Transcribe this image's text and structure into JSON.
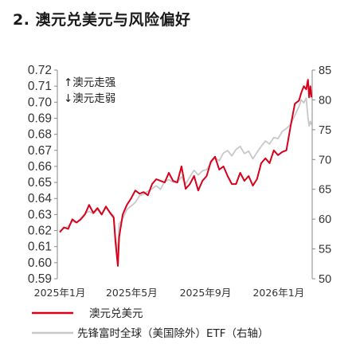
{
  "title": "2. 澳元兑美元与风险偏好",
  "chart_data": {
    "type": "line",
    "annotations": [
      "↑澳元走强",
      "↓澳元走弱"
    ],
    "x_ticks": [
      "2025年1月",
      "2025年5月",
      "2025年9月",
      "2026年1月"
    ],
    "x_tick_dates": [
      "2025-01-01",
      "2025-05-01",
      "2025-09-01",
      "2026-01-01"
    ],
    "x_range": [
      "2024-12-28",
      "2026-02-26"
    ],
    "y_left": {
      "ticks": [
        "0.72",
        "0.71",
        "0.70",
        "0.69",
        "0.68",
        "0.67",
        "0.66",
        "0.65",
        "0.64",
        "0.63",
        "0.62",
        "0.61",
        "0.60",
        "0.59"
      ],
      "range": [
        0.59,
        0.72
      ]
    },
    "y_right": {
      "ticks": [
        "85",
        "80",
        "75",
        "70",
        "65",
        "60",
        "55",
        "50"
      ],
      "range": [
        50,
        85
      ]
    },
    "grid": false,
    "legend_position": "bottom",
    "series": [
      {
        "name": "澳元兑美元",
        "axis": "left",
        "color": "#d9001b",
        "points": [
          [
            "2025-01-01",
            0.619
          ],
          [
            "2025-01-08",
            0.622
          ],
          [
            "2025-01-15",
            0.621
          ],
          [
            "2025-01-22",
            0.627
          ],
          [
            "2025-01-29",
            0.625
          ],
          [
            "2025-02-05",
            0.627
          ],
          [
            "2025-02-12",
            0.63
          ],
          [
            "2025-02-19",
            0.636
          ],
          [
            "2025-02-26",
            0.631
          ],
          [
            "2025-03-05",
            0.634
          ],
          [
            "2025-03-12",
            0.63
          ],
          [
            "2025-03-19",
            0.635
          ],
          [
            "2025-03-26",
            0.631
          ],
          [
            "2025-04-01",
            0.628
          ],
          [
            "2025-04-04",
            0.613
          ],
          [
            "2025-04-08",
            0.598
          ],
          [
            "2025-04-10",
            0.616
          ],
          [
            "2025-04-16",
            0.63
          ],
          [
            "2025-04-23",
            0.636
          ],
          [
            "2025-04-30",
            0.64
          ],
          [
            "2025-05-07",
            0.645
          ],
          [
            "2025-05-14",
            0.643
          ],
          [
            "2025-05-21",
            0.644
          ],
          [
            "2025-05-28",
            0.642
          ],
          [
            "2025-06-04",
            0.649
          ],
          [
            "2025-06-11",
            0.652
          ],
          [
            "2025-06-18",
            0.651
          ],
          [
            "2025-06-25",
            0.65
          ],
          [
            "2025-07-02",
            0.656
          ],
          [
            "2025-07-09",
            0.651
          ],
          [
            "2025-07-16",
            0.65
          ],
          [
            "2025-07-23",
            0.66
          ],
          [
            "2025-07-30",
            0.646
          ],
          [
            "2025-08-06",
            0.649
          ],
          [
            "2025-08-13",
            0.654
          ],
          [
            "2025-08-20",
            0.645
          ],
          [
            "2025-08-27",
            0.651
          ],
          [
            "2025-09-03",
            0.654
          ],
          [
            "2025-09-10",
            0.663
          ],
          [
            "2025-09-17",
            0.666
          ],
          [
            "2025-09-24",
            0.658
          ],
          [
            "2025-10-01",
            0.66
          ],
          [
            "2025-10-08",
            0.654
          ],
          [
            "2025-10-15",
            0.649
          ],
          [
            "2025-10-22",
            0.649
          ],
          [
            "2025-10-29",
            0.656
          ],
          [
            "2025-11-05",
            0.651
          ],
          [
            "2025-11-12",
            0.654
          ],
          [
            "2025-11-19",
            0.648
          ],
          [
            "2025-11-26",
            0.652
          ],
          [
            "2025-12-03",
            0.662
          ],
          [
            "2025-12-10",
            0.665
          ],
          [
            "2025-12-17",
            0.662
          ],
          [
            "2025-12-24",
            0.67
          ],
          [
            "2025-12-31",
            0.667
          ],
          [
            "2026-01-07",
            0.669
          ],
          [
            "2026-01-14",
            0.67
          ],
          [
            "2026-01-21",
            0.685
          ],
          [
            "2026-01-28",
            0.699
          ],
          [
            "2026-02-04",
            0.701
          ],
          [
            "2026-02-08",
            0.706
          ],
          [
            "2026-02-12",
            0.71
          ],
          [
            "2026-02-16",
            0.708
          ],
          [
            "2026-02-19",
            0.714
          ],
          [
            "2026-02-21",
            0.703
          ],
          [
            "2026-02-23",
            0.71
          ],
          [
            "2026-02-25",
            0.703
          ]
        ]
      },
      {
        "name": "先锋富时全球（美国除外）ETF（右轴）",
        "axis": "right",
        "color": "#c8c8c8",
        "points": [
          [
            "2025-01-01",
            58.0
          ],
          [
            "2025-01-08",
            58.4
          ],
          [
            "2025-01-15",
            58.8
          ],
          [
            "2025-01-22",
            59.6
          ],
          [
            "2025-01-29",
            59.4
          ],
          [
            "2025-02-05",
            60.1
          ],
          [
            "2025-02-12",
            60.9
          ],
          [
            "2025-02-19",
            61.3
          ],
          [
            "2025-02-26",
            60.9
          ],
          [
            "2025-03-05",
            61.6
          ],
          [
            "2025-03-12",
            60.8
          ],
          [
            "2025-03-19",
            61.9
          ],
          [
            "2025-03-26",
            61.1
          ],
          [
            "2025-04-01",
            60.6
          ],
          [
            "2025-04-04",
            57.0
          ],
          [
            "2025-04-08",
            54.5
          ],
          [
            "2025-04-10",
            59.2
          ],
          [
            "2025-04-16",
            60.1
          ],
          [
            "2025-04-23",
            61.6
          ],
          [
            "2025-04-30",
            62.2
          ],
          [
            "2025-05-07",
            62.8
          ],
          [
            "2025-05-14",
            63.9
          ],
          [
            "2025-05-21",
            64.2
          ],
          [
            "2025-05-28",
            64.7
          ],
          [
            "2025-06-04",
            65.1
          ],
          [
            "2025-06-11",
            65.6
          ],
          [
            "2025-06-18",
            65.0
          ],
          [
            "2025-06-25",
            66.3
          ],
          [
            "2025-07-02",
            66.6
          ],
          [
            "2025-07-09",
            66.2
          ],
          [
            "2025-07-16",
            66.1
          ],
          [
            "2025-07-23",
            67.1
          ],
          [
            "2025-07-30",
            65.9
          ],
          [
            "2025-08-06",
            67.1
          ],
          [
            "2025-08-13",
            68.2
          ],
          [
            "2025-08-20",
            67.4
          ],
          [
            "2025-08-27",
            68.1
          ],
          [
            "2025-09-03",
            68.3
          ],
          [
            "2025-09-10",
            69.4
          ],
          [
            "2025-09-17",
            70.3
          ],
          [
            "2025-09-24",
            69.8
          ],
          [
            "2025-10-01",
            71.1
          ],
          [
            "2025-10-08",
            71.5
          ],
          [
            "2025-10-15",
            70.6
          ],
          [
            "2025-10-22",
            71.7
          ],
          [
            "2025-10-29",
            72.2
          ],
          [
            "2025-11-05",
            71.0
          ],
          [
            "2025-11-12",
            71.4
          ],
          [
            "2025-11-19",
            70.1
          ],
          [
            "2025-11-26",
            71.2
          ],
          [
            "2025-12-03",
            72.2
          ],
          [
            "2025-12-10",
            73.1
          ],
          [
            "2025-12-17",
            72.6
          ],
          [
            "2025-12-24",
            73.7
          ],
          [
            "2025-12-31",
            73.5
          ],
          [
            "2026-01-07",
            74.7
          ],
          [
            "2026-01-14",
            75.2
          ],
          [
            "2026-01-21",
            75.9
          ],
          [
            "2026-01-28",
            77.4
          ],
          [
            "2026-02-04",
            78.9
          ],
          [
            "2026-02-08",
            80.0
          ],
          [
            "2026-02-12",
            79.5
          ],
          [
            "2026-02-16",
            80.3
          ],
          [
            "2026-02-19",
            77.0
          ],
          [
            "2026-02-21",
            75.6
          ],
          [
            "2026-02-23",
            76.4
          ],
          [
            "2026-02-25",
            75.8
          ]
        ]
      }
    ]
  }
}
